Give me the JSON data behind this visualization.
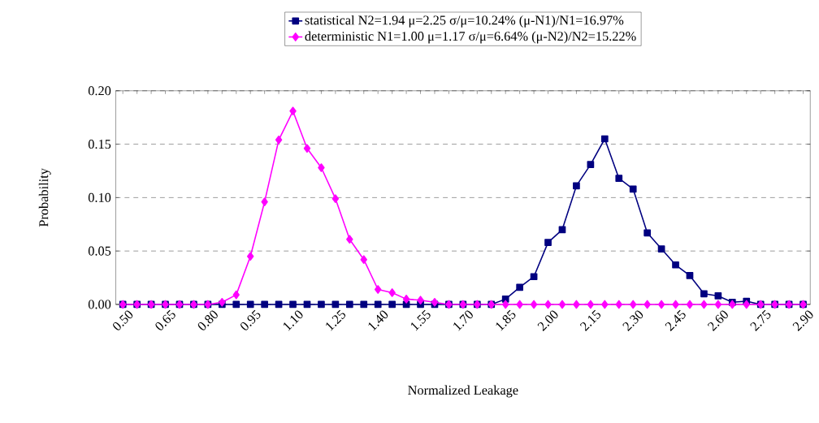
{
  "chart_data": {
    "type": "line",
    "xlabel": "Normalized Leakage",
    "ylabel": "Probability",
    "categories": [
      "0.50",
      null,
      null,
      "0.65",
      null,
      null,
      "0.80",
      null,
      null,
      "0.95",
      null,
      null,
      "1.10",
      null,
      null,
      "1.25",
      null,
      null,
      "1.40",
      null,
      null,
      "1.55",
      null,
      null,
      "1.70",
      null,
      null,
      "1.85",
      null,
      null,
      "2.00",
      null,
      null,
      "2.15",
      null,
      null,
      "2.30",
      null,
      null,
      "2.45",
      null,
      null,
      "2.60",
      null,
      null,
      "2.75",
      null,
      null,
      "2.90"
    ],
    "series": [
      {
        "name": "statistical        N2=1.94   μ=2.25  σ/μ=10.24%   (μ-N1)/N1=16.97%",
        "color": "#000080",
        "marker": "square",
        "values": [
          0,
          0,
          0,
          0,
          0,
          0,
          0,
          0,
          0,
          0,
          0,
          0,
          0,
          0,
          0,
          0,
          0,
          0,
          0,
          0,
          0,
          0,
          0,
          0,
          0,
          0,
          0,
          0.005,
          0.016,
          0.026,
          0.058,
          0.07,
          0.111,
          0.131,
          0.155,
          0.118,
          0.108,
          0.067,
          0.052,
          0.037,
          0.027,
          0.01,
          0.008,
          0.002,
          0.003,
          0,
          0,
          0,
          0
        ]
      },
      {
        "name": "deterministic  N1=1.00   μ=1.17   σ/μ=6.64%    (μ-N2)/N2=15.22%",
        "color": "#ff00ff",
        "marker": "diamond",
        "values": [
          0,
          0,
          0,
          0,
          0,
          0,
          0,
          0.002,
          0.009,
          0.045,
          0.096,
          0.154,
          0.181,
          0.146,
          0.128,
          0.099,
          0.061,
          0.042,
          0.014,
          0.011,
          0.005,
          0.004,
          0.002,
          0,
          0,
          0,
          0,
          0,
          0,
          0,
          0,
          0,
          0,
          0,
          0,
          0,
          0,
          0,
          0,
          0,
          0,
          0,
          0,
          0,
          0,
          0,
          0,
          0,
          0
        ]
      }
    ],
    "ylim": [
      0,
      0.2
    ],
    "yticks": [
      {
        "value": 0,
        "label": "0.00"
      },
      {
        "value": 0.05,
        "label": "0.05"
      },
      {
        "value": 0.1,
        "label": "0.10"
      },
      {
        "value": 0.15,
        "label": "0.15"
      },
      {
        "value": 0.2,
        "label": "0.20"
      }
    ],
    "grid": "y",
    "legend": "top"
  }
}
